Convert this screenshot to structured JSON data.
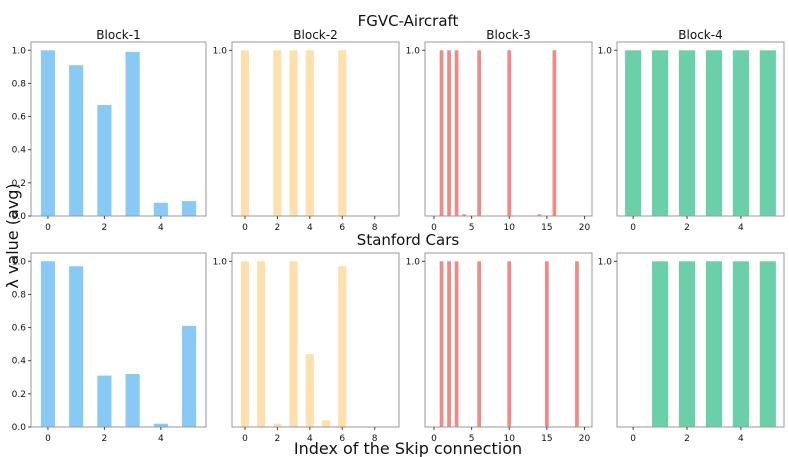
{
  "figure": {
    "ylabel": "λ value (avg)",
    "xlabel": "Index of the Skip connection"
  },
  "colors": {
    "block1": "#88c9f5",
    "block2": "#fde0ad",
    "block3": "#ef8a86",
    "block4": "#6bd0aa",
    "frame": "#9a9a9a"
  },
  "chart_data": [
    {
      "type": "bar",
      "row_title": "FGVC-Aircraft",
      "panels": [
        {
          "title": "Block-1",
          "color": "block1",
          "x": [
            0,
            1,
            2,
            3,
            4,
            5
          ],
          "values": [
            1.0,
            0.91,
            0.67,
            0.99,
            0.08,
            0.09
          ],
          "xlim": [
            -0.6,
            5.6
          ],
          "xticks": [
            "0",
            "2",
            "4"
          ],
          "ylim": [
            0,
            1.05
          ],
          "yticks": [
            "0.0",
            "0.2",
            "0.4",
            "0.6",
            "0.8",
            "1.0"
          ],
          "bar_width": 0.5
        },
        {
          "title": "Block-2",
          "color": "block2",
          "x": [
            0,
            2,
            3,
            4,
            6
          ],
          "values": [
            1.0,
            1.0,
            1.0,
            1.0,
            1.0
          ],
          "xlim": [
            -0.8,
            9.5
          ],
          "xticks": [
            "0",
            "2",
            "4",
            "6",
            "8"
          ],
          "ylim": [
            0,
            1.05
          ],
          "bar_width": 0.5
        },
        {
          "title": "Block-3",
          "color": "block3",
          "x": [
            1,
            2,
            3,
            4,
            6,
            10,
            14,
            16
          ],
          "values": [
            1.0,
            1.0,
            1.0,
            0.01,
            1.0,
            1.0,
            0.01,
            1.0
          ],
          "xlim": [
            -1.2,
            21.0
          ],
          "xticks": [
            "0",
            "5",
            "10",
            "15",
            "20"
          ],
          "ylim": [
            0,
            1.05
          ],
          "bar_width": 0.5
        },
        {
          "title": "Block-4",
          "color": "block4",
          "x": [
            0,
            1,
            2,
            3,
            4,
            5
          ],
          "values": [
            1.0,
            1.0,
            1.0,
            1.0,
            1.0,
            1.0
          ],
          "xlim": [
            -0.6,
            5.6
          ],
          "xticks": [
            "0",
            "2",
            "4"
          ],
          "ylim": [
            0,
            1.05
          ],
          "bar_width": 0.6
        }
      ]
    },
    {
      "type": "bar",
      "row_title": "Stanford Cars",
      "panels": [
        {
          "color": "block1",
          "x": [
            0,
            1,
            2,
            3,
            4,
            5
          ],
          "values": [
            1.0,
            0.97,
            0.31,
            0.32,
            0.02,
            0.61
          ],
          "xlim": [
            -0.6,
            5.6
          ],
          "xticks": [
            "0",
            "2",
            "4"
          ],
          "ylim": [
            0,
            1.05
          ],
          "yticks": [
            "0.0",
            "0.2",
            "0.4",
            "0.6",
            "0.8",
            "1.0"
          ],
          "bar_width": 0.5
        },
        {
          "color": "block2",
          "x": [
            0,
            1,
            2,
            3,
            4,
            5,
            6
          ],
          "values": [
            1.0,
            1.0,
            0.02,
            1.0,
            0.44,
            0.04,
            0.97
          ],
          "xlim": [
            -0.8,
            9.5
          ],
          "xticks": [
            "0",
            "2",
            "4",
            "6",
            "8"
          ],
          "ylim": [
            0,
            1.05
          ],
          "bar_width": 0.5
        },
        {
          "color": "block3",
          "x": [
            1,
            2,
            3,
            6,
            10,
            15,
            19
          ],
          "values": [
            1.0,
            1.0,
            1.0,
            1.0,
            1.0,
            1.0,
            1.0
          ],
          "xlim": [
            -1.2,
            21.0
          ],
          "xticks": [
            "0",
            "5",
            "10",
            "15",
            "20"
          ],
          "ylim": [
            0,
            1.05
          ],
          "bar_width": 0.5
        },
        {
          "color": "block4",
          "x": [
            1,
            2,
            3,
            4,
            5
          ],
          "values": [
            1.0,
            1.0,
            1.0,
            1.0,
            1.0
          ],
          "xlim": [
            -0.6,
            5.6
          ],
          "xticks": [
            "0",
            "2",
            "4"
          ],
          "ylim": [
            0,
            1.05
          ],
          "bar_width": 0.6
        }
      ]
    }
  ]
}
